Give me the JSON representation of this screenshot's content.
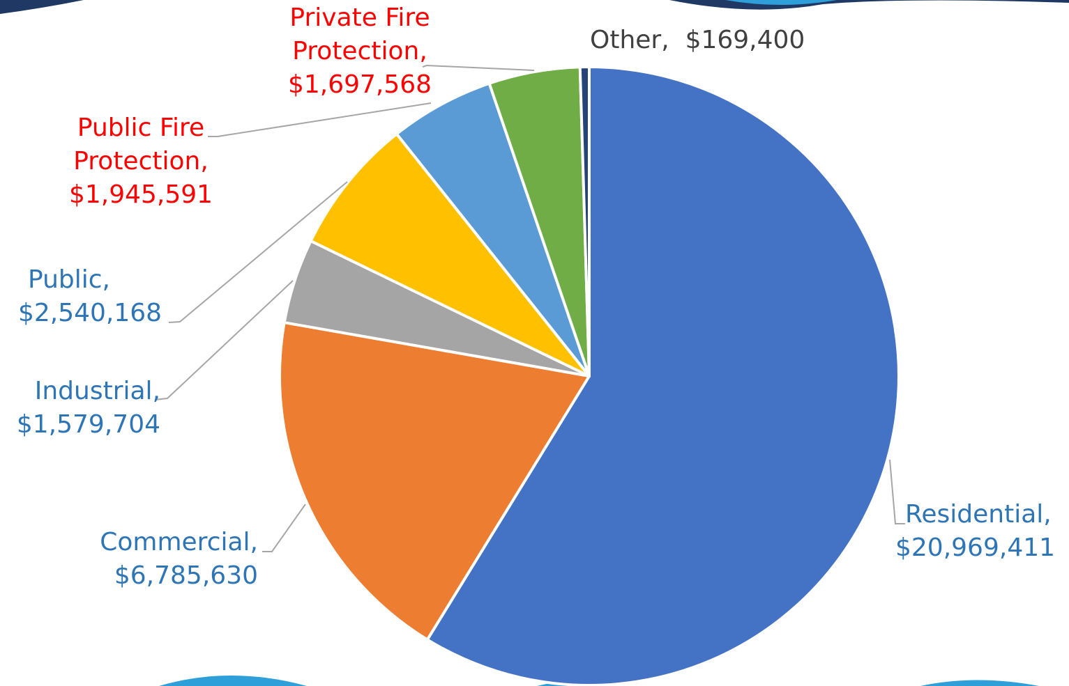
{
  "chart_data": {
    "type": "pie",
    "title": "",
    "colors": {
      "Residential": "#4472C4",
      "Commercial": "#ED7D31",
      "Industrial": "#A5A5A5",
      "Public": "#FFC000",
      "Public Fire Protection": "#5B9BD5",
      "Private Fire Protection": "#70AD47",
      "Other": "#264478",
      "label_default": "#2E75B6",
      "label_fire": "#FF0000",
      "label_other": "#404040",
      "leader": "#A6A6A6",
      "wave": "#1F3864",
      "wave_light": "#2E9FD9"
    },
    "slices": [
      {
        "name": "Residential",
        "value": 20969411,
        "label_name": "Residential,",
        "label_value": "$20,969,411"
      },
      {
        "name": "Commercial",
        "value": 6785630,
        "label_name": "Commercial,",
        "label_value": "$6,785,630"
      },
      {
        "name": "Industrial",
        "value": 1579704,
        "label_name": "Industrial,",
        "label_value": "$1,579,704"
      },
      {
        "name": "Public",
        "value": 2540168,
        "label_name": "Public,",
        "label_value": "$2,540,168"
      },
      {
        "name": "Public Fire Protection",
        "value": 1945591,
        "label_name_1": "Public Fire",
        "label_name_2": "Protection,",
        "label_value": "$1,945,591"
      },
      {
        "name": "Private Fire Protection",
        "value": 1697568,
        "label_name_1": "Private Fire",
        "label_name_2": "Protection,",
        "label_value": "$1,697,568"
      },
      {
        "name": "Other",
        "value": 169400,
        "label_name": "Other,",
        "label_value": "$169,400"
      }
    ]
  }
}
